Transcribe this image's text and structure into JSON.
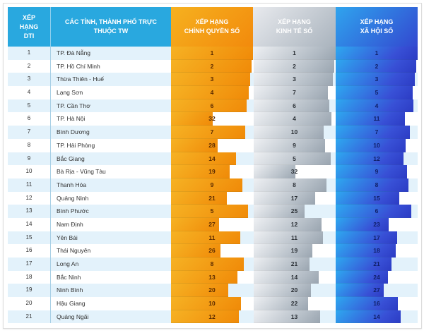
{
  "chart_data": {
    "type": "table",
    "title": "",
    "columns": [
      "XẾP HẠNG DTI",
      "CÁC TỈNH, THÀNH PHỐ TRỰC THUỘC TW",
      "XẾP HẠNG CHÍNH QUYỀN SỐ",
      "XẾP HẠNG KINH TẾ SỐ",
      "XẾP HẠNG XÃ HỘI SỐ"
    ],
    "header": {
      "rank": "XẾP\nHẠNG\nDTI",
      "name": "CÁC TỈNH, THÀNH PHỐ TRỰC\nTHUỘC TW",
      "gov": "XẾP HẠNG\nCHÍNH QUYỀN SỐ",
      "eco": "XẾP HẠNG\nKINH TẾ SỐ",
      "soc": "XẾP HẠNG\nXÃ HỘI SỐ"
    },
    "rank_scale_max": 63,
    "colors": {
      "header_blue": "#29a8df",
      "gov_orange": "#f28a0c",
      "eco_gray": "#a9b3bd",
      "soc_blue": "#3348d0"
    },
    "rows": [
      {
        "rank": "1",
        "name": "TP. Đà Nẵng",
        "gov": 1,
        "eco": 1,
        "soc": 1
      },
      {
        "rank": "2",
        "name": "TP. Hồ Chí Minh",
        "gov": 2,
        "eco": 2,
        "soc": 2
      },
      {
        "rank": "3",
        "name": "Thừa Thiên - Huế",
        "gov": 3,
        "eco": 3,
        "soc": 3
      },
      {
        "rank": "4",
        "name": "Lạng Sơn",
        "gov": 4,
        "eco": 7,
        "soc": 5
      },
      {
        "rank": "5",
        "name": "TP. Cần Thơ",
        "gov": 6,
        "eco": 6,
        "soc": 4
      },
      {
        "rank": "6",
        "name": "TP. Hà Nội",
        "gov": 32,
        "eco": 4,
        "soc": 11
      },
      {
        "rank": "7",
        "name": "Bình Dương",
        "gov": 7,
        "eco": 10,
        "soc": 7
      },
      {
        "rank": "8",
        "name": "TP. Hải Phòng",
        "gov": 28,
        "eco": 9,
        "soc": 10
      },
      {
        "rank": "9",
        "name": "Bắc Giang",
        "gov": 14,
        "eco": 5,
        "soc": 12
      },
      {
        "rank": "10",
        "name": "Bà Rịa - Vũng Tàu",
        "gov": 19,
        "eco": 32,
        "soc": 9
      },
      {
        "rank": "11",
        "name": "Thanh Hóa",
        "gov": 9,
        "eco": 8,
        "soc": 8
      },
      {
        "rank": "12",
        "name": "Quảng Ninh",
        "gov": 21,
        "eco": 17,
        "soc": 15
      },
      {
        "rank": "13",
        "name": "Bình Phước",
        "gov": 5,
        "eco": 25,
        "soc": 6
      },
      {
        "rank": "14",
        "name": "Nam Định",
        "gov": 27,
        "eco": 12,
        "soc": 23
      },
      {
        "rank": "15",
        "name": "Yên Bái",
        "gov": 11,
        "eco": 11,
        "soc": 17
      },
      {
        "rank": "16",
        "name": "Thái Nguyên",
        "gov": 26,
        "eco": 19,
        "soc": 18
      },
      {
        "rank": "17",
        "name": "Long An",
        "gov": 8,
        "eco": 21,
        "soc": 21
      },
      {
        "rank": "18",
        "name": "Bắc Ninh",
        "gov": 13,
        "eco": 14,
        "soc": 24
      },
      {
        "rank": "19",
        "name": "Ninh Bình",
        "gov": 20,
        "eco": 20,
        "soc": 27
      },
      {
        "rank": "20",
        "name": "Hậu Giang",
        "gov": 10,
        "eco": 22,
        "soc": 16
      },
      {
        "rank": "21",
        "name": "Quảng Ngãi",
        "gov": 12,
        "eco": 13,
        "soc": 14
      }
    ]
  }
}
